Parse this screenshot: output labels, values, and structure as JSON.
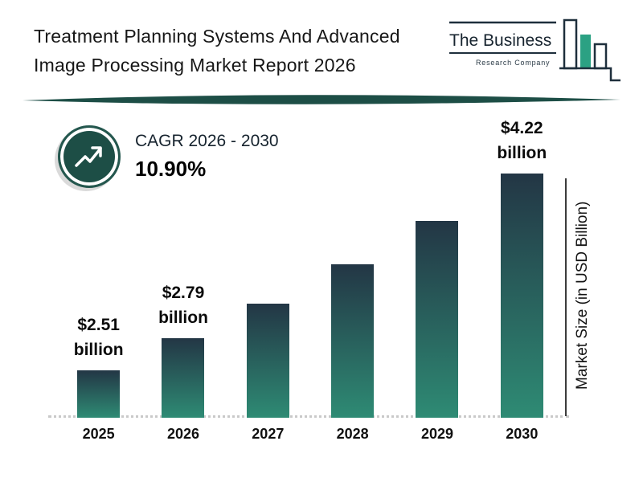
{
  "colors": {
    "accent_teal": "#1d4e46",
    "bar_top": "#233645",
    "bar_bottom": "#2e8b74",
    "logo_green": "#2ba183",
    "logo_navy": "#1e2f3c"
  },
  "header": {
    "title_line1": "Treatment Planning Systems And Advanced",
    "title_line2": "Image Processing Market Report 2026"
  },
  "logo": {
    "line1": "The Business",
    "line2": "Research Company"
  },
  "cagr": {
    "label": "CAGR 2026 - 2030",
    "value": "10.90%"
  },
  "chart_data": {
    "type": "bar",
    "title": "Treatment Planning Systems And Advanced Image Processing Market Report 2026",
    "categories": [
      "2025",
      "2026",
      "2027",
      "2028",
      "2029",
      "2030"
    ],
    "values": [
      2.51,
      2.79,
      3.09,
      3.43,
      3.81,
      4.22
    ],
    "labeled_points": [
      {
        "category": "2025",
        "amount": "$2.51",
        "unit": "billion"
      },
      {
        "category": "2026",
        "amount": "$2.79",
        "unit": "billion"
      },
      {
        "category": "2030",
        "amount": "$4.22",
        "unit": "billion"
      }
    ],
    "xlabel": "",
    "ylabel": "Market Size (in USD Billion)",
    "ylim": [
      2.1,
      4.4
    ],
    "grid": false,
    "legend": false
  }
}
